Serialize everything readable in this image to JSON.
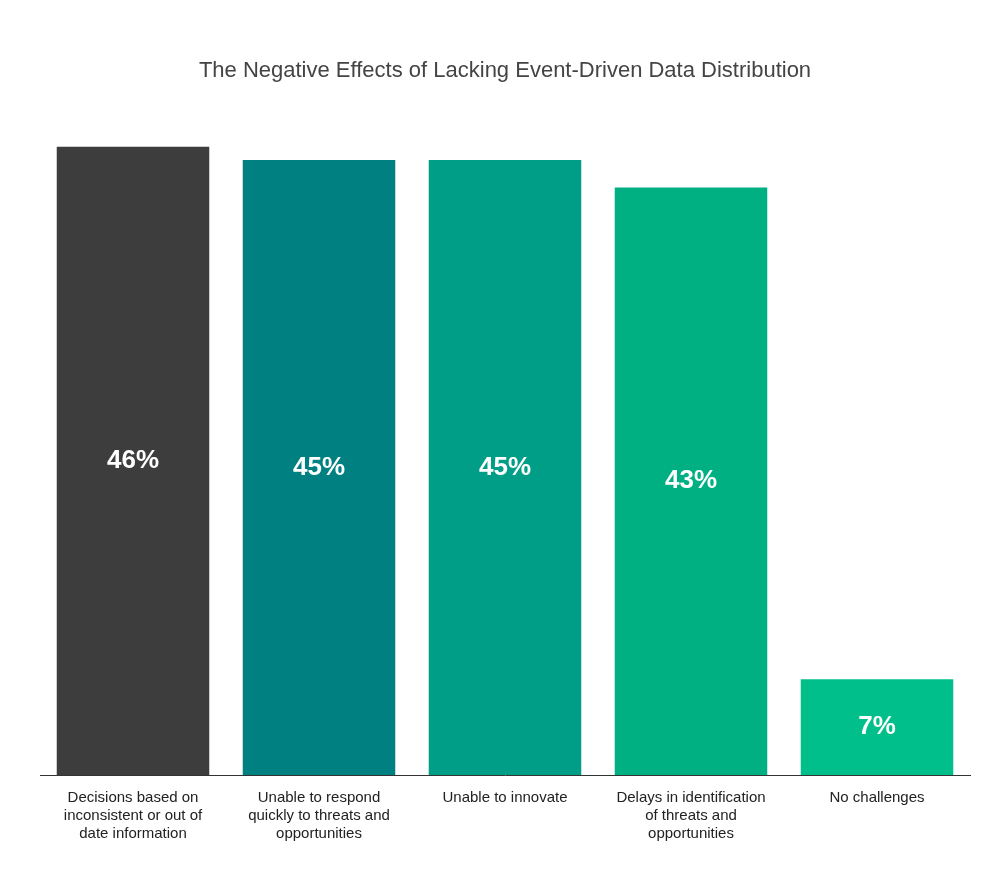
{
  "chart_data": {
    "type": "bar",
    "title": "The Negative Effects of Lacking Event-Driven Data Distribution",
    "categories": [
      "Decisions based on inconsistent or out of date information",
      "Unable to respond quickly to threats and opportunities",
      "Unable to innovate",
      "Delays in identification of threats and opportunities",
      "No challenges"
    ],
    "values": [
      46,
      45,
      45,
      43,
      7
    ],
    "value_labels": [
      "46%",
      "45%",
      "45%",
      "43%",
      "7%"
    ],
    "colors": [
      "#3d3d3d",
      "#008080",
      "#009e86",
      "#00b083",
      "#00bf8a"
    ],
    "ylim": [
      0,
      46
    ],
    "grid": false,
    "data_labels": true,
    "tick_labels": "x"
  }
}
